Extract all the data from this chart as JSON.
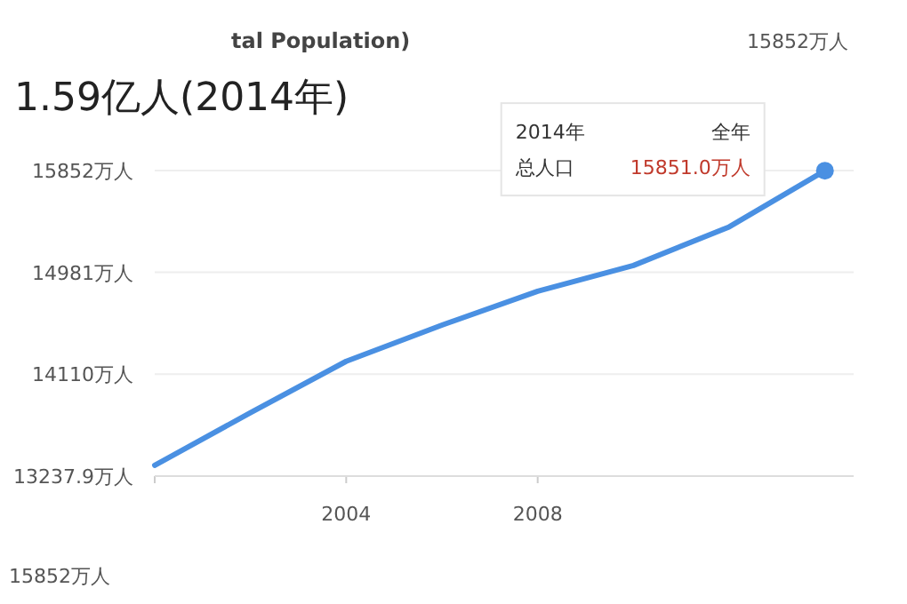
{
  "chart_data": {
    "type": "line",
    "title": "1.59亿人(2014年)",
    "subtitle": "tal Population)",
    "x": [
      2000,
      2002,
      2004,
      2006,
      2008,
      2010,
      2012,
      2014
    ],
    "series": [
      {
        "color": "#4a90e2",
        "values": [
          13330,
          13780,
          14220,
          14530,
          14820,
          15040,
          15370,
          15851
        ]
      }
    ],
    "xlim": [
      2000,
      2014.6
    ],
    "xticks": [
      {
        "value": 2000,
        "label": null
      },
      2004,
      2008
    ],
    "ylim": [
      13237.9,
      15852
    ],
    "yticks": [
      {
        "value": 13237.9,
        "label": "13237.9万人"
      },
      {
        "value": 14110,
        "label": "14110万人"
      },
      {
        "value": 14981,
        "label": "14981万人"
      },
      {
        "value": 15852,
        "label": "15852万人"
      }
    ],
    "grid": "y",
    "marker": "none",
    "line_style": "solid",
    "annotations": [
      "15851.0万人",
      "2014年",
      "全年",
      "总人口",
      "15852万人",
      "15852万人"
    ]
  }
}
